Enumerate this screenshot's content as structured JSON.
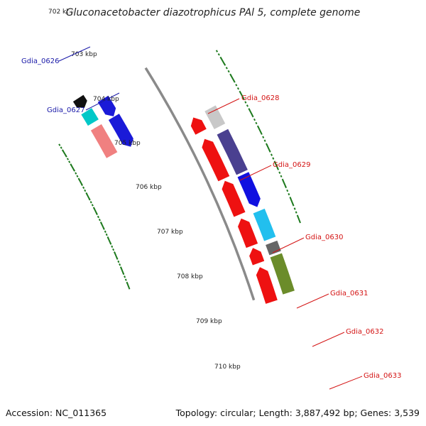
{
  "title": "Gluconacetobacter diazotrophicus PAl 5, complete genome",
  "footer": {
    "accession": "Accession: NC_011365",
    "summary": "Topology: circular; Length: 3,887,492 bp; Genes: 3,539"
  },
  "colors": {
    "background": "#ffffff",
    "backbone": "#8a8a8a",
    "tick": "#1e7a1e",
    "left_labels": "#1a1aa8",
    "right_labels": "#d41414"
  },
  "scale_labels": [
    "702 kbp",
    "703 kbp",
    "704 kbp",
    "705 kbp",
    "706 kbp",
    "707 kbp",
    "708 kbp",
    "709 kbp",
    "710 kbp"
  ],
  "gene_labels": {
    "left": [
      "Gdia_0626",
      "Gdia_0627"
    ],
    "right": [
      "Gdia_0628",
      "Gdia_0629",
      "Gdia_0630",
      "Gdia_0631",
      "Gdia_0632",
      "Gdia_0633"
    ]
  },
  "features": [
    {
      "ring": "forward-outer",
      "color": "#101010"
    },
    {
      "ring": "forward-outer",
      "color": "#00c8c8"
    },
    {
      "ring": "forward-inner",
      "color": "#1a1ad8"
    },
    {
      "ring": "forward-outer",
      "color": "#f08080"
    },
    {
      "ring": "forward-inner",
      "color": "#1a1ad8"
    },
    {
      "ring": "reverse-inner",
      "color": "#ee1111"
    },
    {
      "ring": "reverse-outer",
      "color": "#c8c8c8"
    },
    {
      "ring": "reverse-inner",
      "color": "#ee1111"
    },
    {
      "ring": "reverse-outer",
      "color": "#4a4090"
    },
    {
      "ring": "reverse-inner",
      "color": "#ee1111"
    },
    {
      "ring": "reverse-outer",
      "color": "#1010e0"
    },
    {
      "ring": "reverse-inner",
      "color": "#ee1111"
    },
    {
      "ring": "reverse-outer",
      "color": "#22bfee"
    },
    {
      "ring": "reverse-inner",
      "color": "#ee1111"
    },
    {
      "ring": "reverse-outer",
      "color": "#666666"
    },
    {
      "ring": "reverse-outer",
      "color": "#6b8c2a"
    },
    {
      "ring": "reverse-inner",
      "color": "#ee1111"
    }
  ]
}
